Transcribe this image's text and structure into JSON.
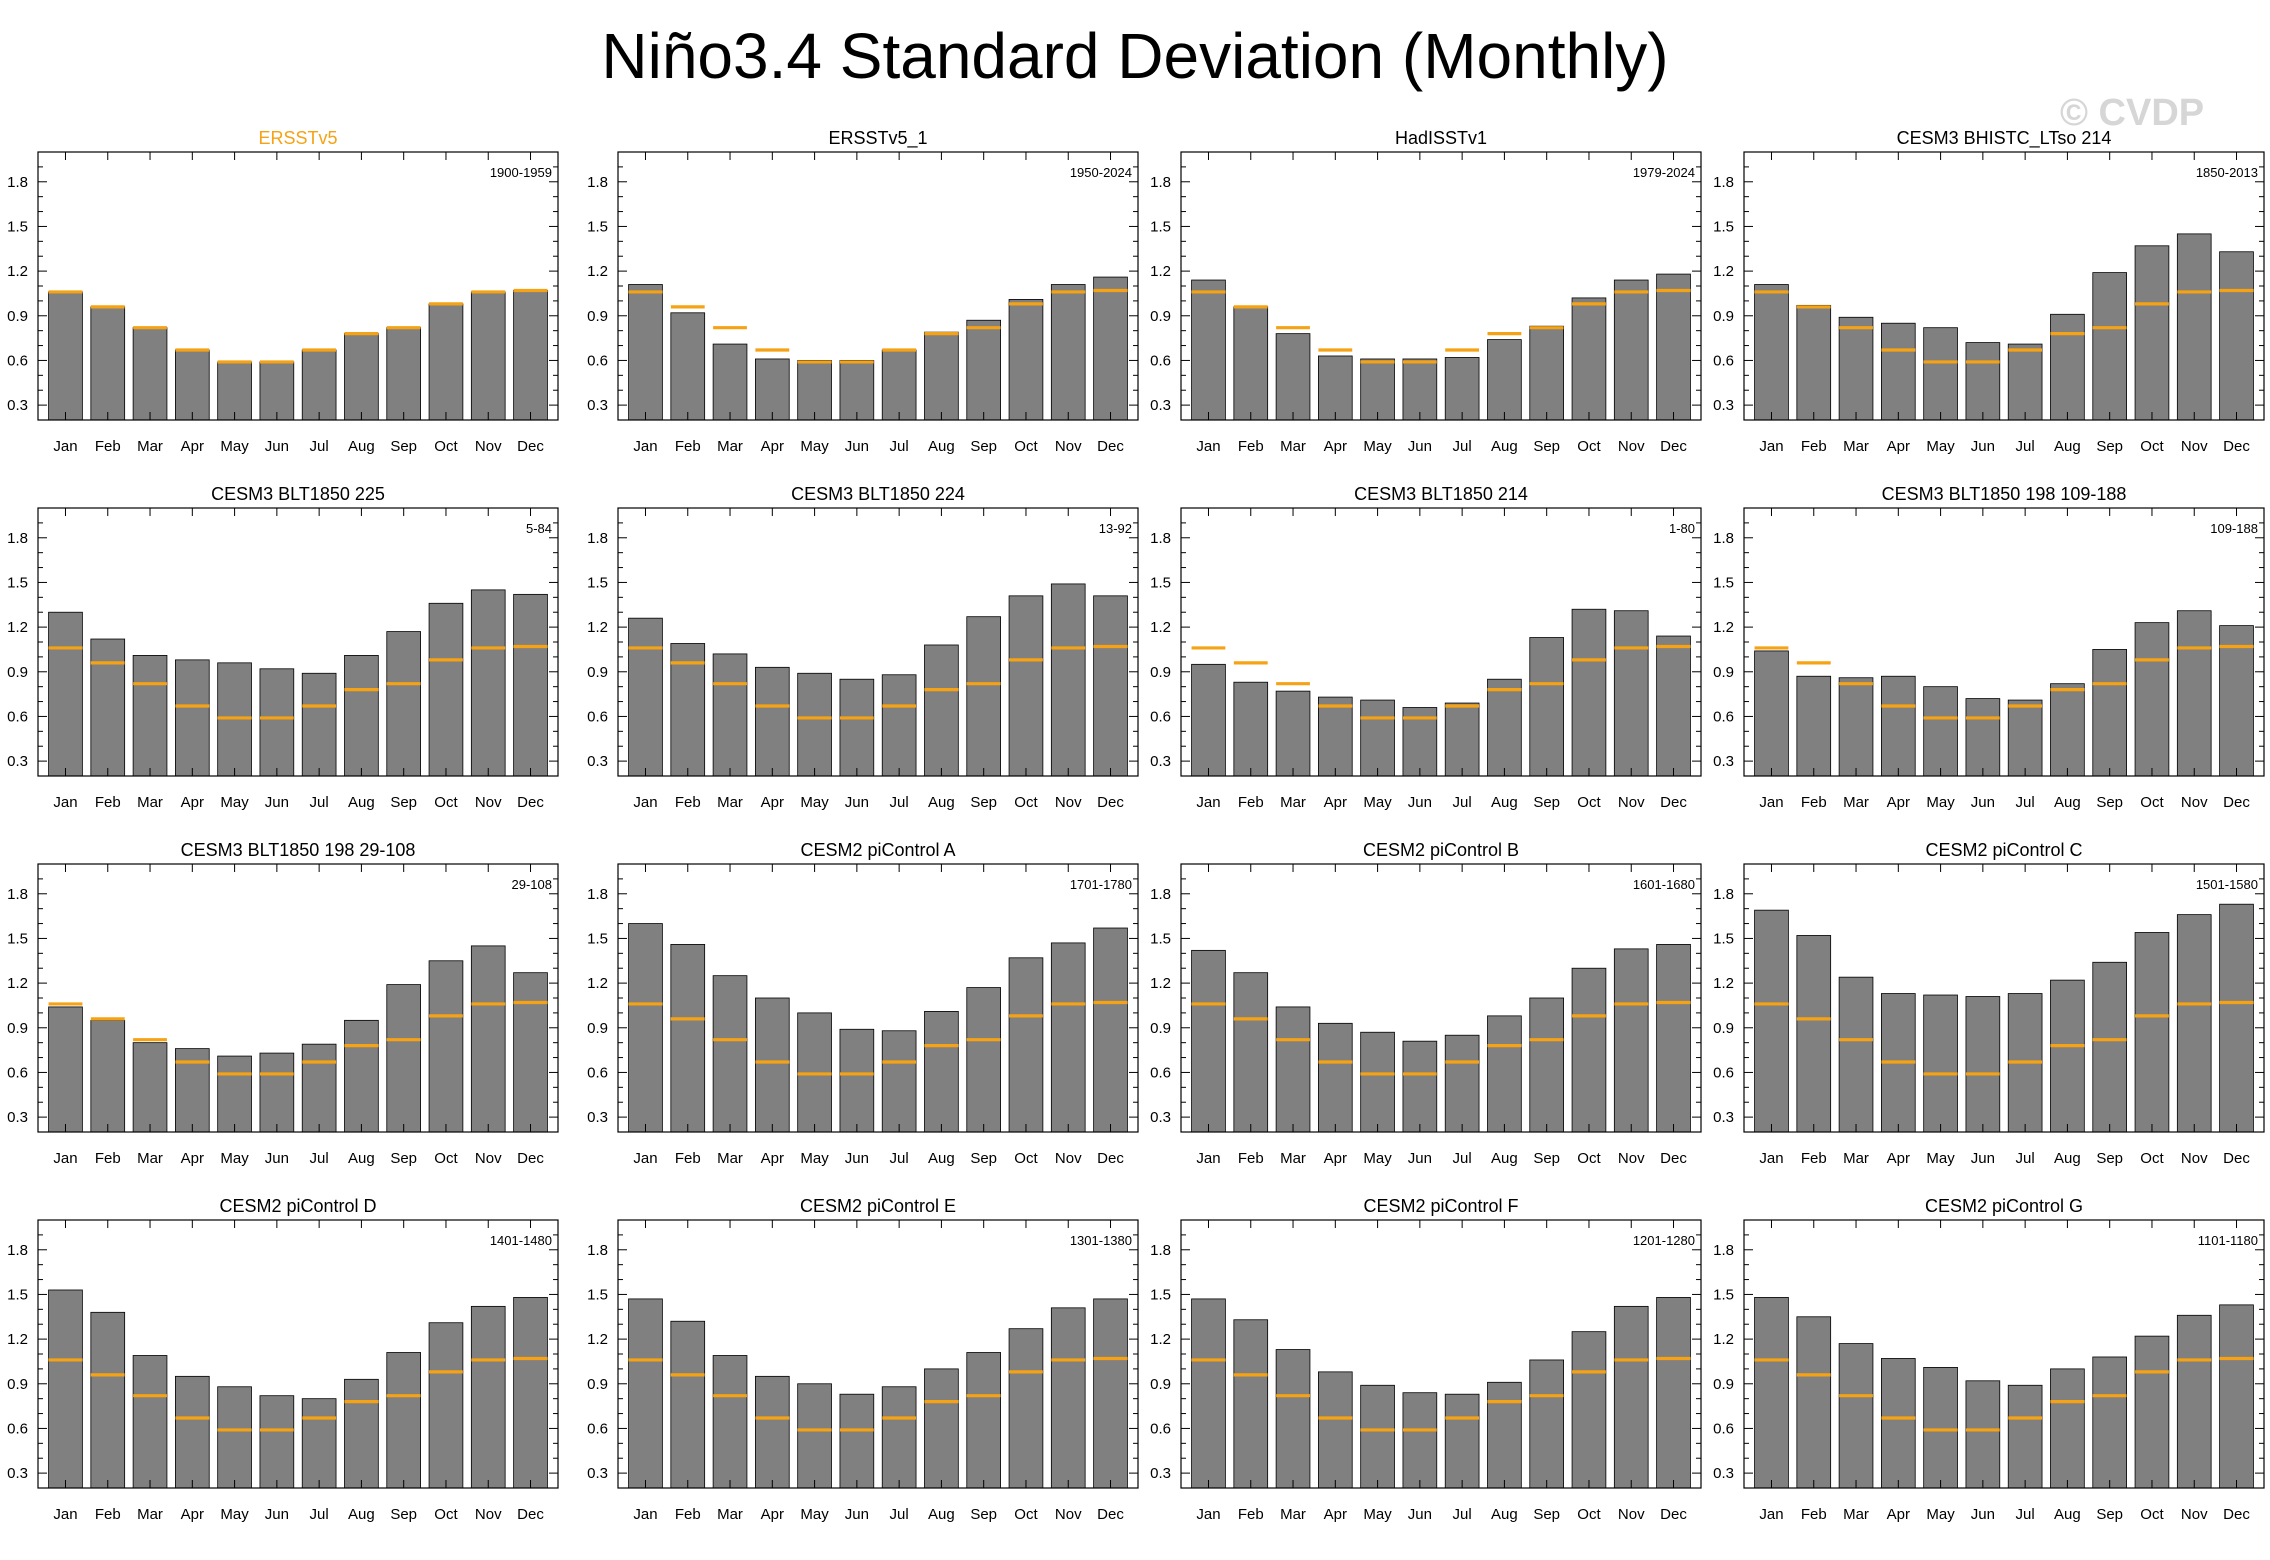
{
  "title": "Niño3.4 Standard Deviation (Monthly)",
  "watermark": "© CVDP",
  "colors": {
    "bar": "#808080",
    "reference_line": "#f5a214",
    "highlight_title": "#f5a214"
  },
  "chart_data": {
    "type": "bar",
    "layout": "4x4 panel grid",
    "months": [
      "Jan",
      "Feb",
      "Mar",
      "Apr",
      "May",
      "Jun",
      "Jul",
      "Aug",
      "Sep",
      "Oct",
      "Nov",
      "Dec"
    ],
    "ylim": [
      0.2,
      2.0
    ],
    "yticks": [
      "0.3",
      "0.6",
      "0.9",
      "1.2",
      "1.5",
      "1.8"
    ],
    "reference": {
      "name": "ERSSTv5",
      "values": [
        1.06,
        0.96,
        0.82,
        0.67,
        0.59,
        0.59,
        0.67,
        0.78,
        0.82,
        0.98,
        1.06,
        1.07
      ]
    },
    "panels": [
      {
        "title": "ERSSTv5",
        "period": "1900-1959",
        "is_reference": true,
        "values": [
          1.06,
          0.96,
          0.82,
          0.67,
          0.59,
          0.59,
          0.67,
          0.78,
          0.82,
          0.98,
          1.06,
          1.07
        ]
      },
      {
        "title": "ERSSTv5_1",
        "period": "1950-2024",
        "is_reference": false,
        "values": [
          1.11,
          0.92,
          0.71,
          0.61,
          0.6,
          0.6,
          0.67,
          0.79,
          0.87,
          1.01,
          1.11,
          1.16
        ]
      },
      {
        "title": "HadISSTv1",
        "period": "1979-2024",
        "is_reference": false,
        "values": [
          1.14,
          0.96,
          0.78,
          0.63,
          0.61,
          0.61,
          0.62,
          0.74,
          0.83,
          1.02,
          1.14,
          1.18
        ]
      },
      {
        "title": "CESM3 BHISTC_LTso 214",
        "period": "1850-2013",
        "is_reference": false,
        "values": [
          1.11,
          0.97,
          0.89,
          0.85,
          0.82,
          0.72,
          0.71,
          0.91,
          1.19,
          1.37,
          1.45,
          1.33
        ]
      },
      {
        "title": "CESM3 BLT1850 225",
        "period": "5-84",
        "is_reference": false,
        "values": [
          1.3,
          1.12,
          1.01,
          0.98,
          0.96,
          0.92,
          0.89,
          1.01,
          1.17,
          1.36,
          1.45,
          1.42
        ]
      },
      {
        "title": "CESM3 BLT1850 224",
        "period": "13-92",
        "is_reference": false,
        "values": [
          1.26,
          1.09,
          1.02,
          0.93,
          0.89,
          0.85,
          0.88,
          1.08,
          1.27,
          1.41,
          1.49,
          1.41
        ]
      },
      {
        "title": "CESM3 BLT1850 214",
        "period": "1-80",
        "is_reference": false,
        "values": [
          0.95,
          0.83,
          0.77,
          0.73,
          0.71,
          0.66,
          0.69,
          0.85,
          1.13,
          1.32,
          1.31,
          1.14
        ]
      },
      {
        "title": "CESM3 BLT1850 198 109-188",
        "period": "109-188",
        "is_reference": false,
        "values": [
          1.04,
          0.87,
          0.86,
          0.87,
          0.8,
          0.72,
          0.71,
          0.82,
          1.05,
          1.23,
          1.31,
          1.21
        ]
      },
      {
        "title": "CESM3 BLT1850 198 29-108",
        "period": "29-108",
        "is_reference": false,
        "values": [
          1.04,
          0.95,
          0.8,
          0.76,
          0.71,
          0.73,
          0.79,
          0.95,
          1.19,
          1.35,
          1.45,
          1.27
        ]
      },
      {
        "title": "CESM2 piControl A",
        "period": "1701-1780",
        "is_reference": false,
        "values": [
          1.6,
          1.46,
          1.25,
          1.1,
          1.0,
          0.89,
          0.88,
          1.01,
          1.17,
          1.37,
          1.47,
          1.57
        ]
      },
      {
        "title": "CESM2 piControl B",
        "period": "1601-1680",
        "is_reference": false,
        "values": [
          1.42,
          1.27,
          1.04,
          0.93,
          0.87,
          0.81,
          0.85,
          0.98,
          1.1,
          1.3,
          1.43,
          1.46
        ]
      },
      {
        "title": "CESM2 piControl C",
        "period": "1501-1580",
        "is_reference": false,
        "values": [
          1.69,
          1.52,
          1.24,
          1.13,
          1.12,
          1.11,
          1.13,
          1.22,
          1.34,
          1.54,
          1.66,
          1.73
        ]
      },
      {
        "title": "CESM2 piControl D",
        "period": "1401-1480",
        "is_reference": false,
        "values": [
          1.53,
          1.38,
          1.09,
          0.95,
          0.88,
          0.82,
          0.8,
          0.93,
          1.11,
          1.31,
          1.42,
          1.48
        ]
      },
      {
        "title": "CESM2 piControl E",
        "period": "1301-1380",
        "is_reference": false,
        "values": [
          1.47,
          1.32,
          1.09,
          0.95,
          0.9,
          0.83,
          0.88,
          1.0,
          1.11,
          1.27,
          1.41,
          1.47
        ]
      },
      {
        "title": "CESM2 piControl F",
        "period": "1201-1280",
        "is_reference": false,
        "values": [
          1.47,
          1.33,
          1.13,
          0.98,
          0.89,
          0.84,
          0.83,
          0.91,
          1.06,
          1.25,
          1.42,
          1.48
        ]
      },
      {
        "title": "CESM2 piControl G",
        "period": "1101-1180",
        "is_reference": false,
        "values": [
          1.48,
          1.35,
          1.17,
          1.07,
          1.01,
          0.92,
          0.89,
          1.0,
          1.08,
          1.22,
          1.36,
          1.43
        ]
      }
    ]
  }
}
